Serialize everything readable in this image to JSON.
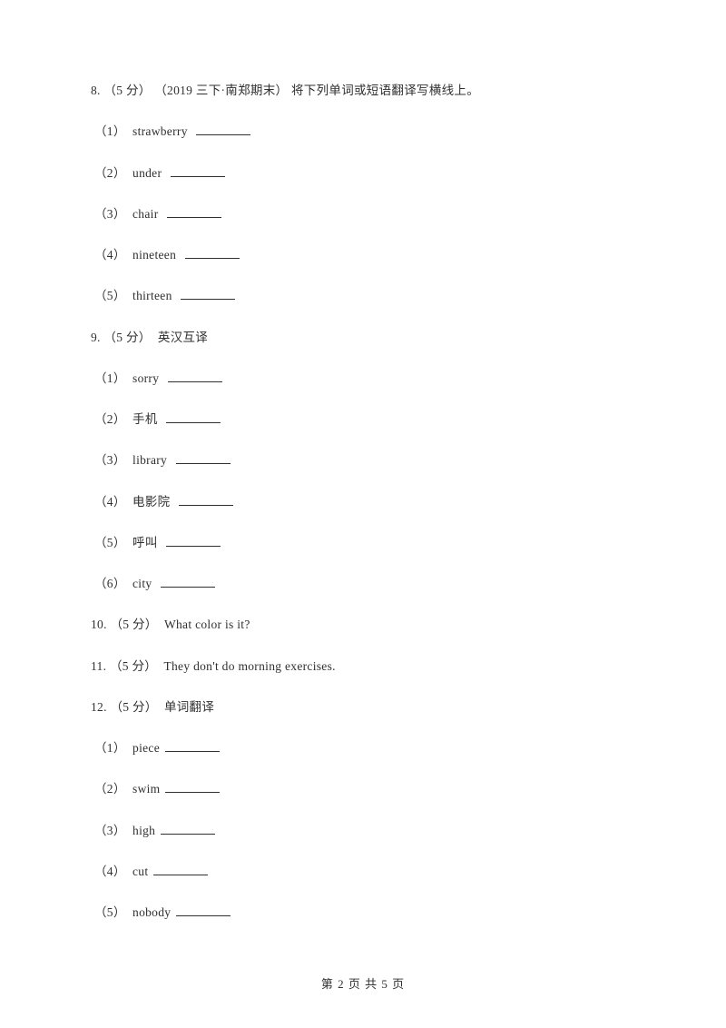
{
  "questions": [
    {
      "number": "8.",
      "points": "（5 分）",
      "meta": "（2019 三下·南郑期末）",
      "prompt": "将下列单词或短语翻译写横线上。",
      "items": [
        {
          "num": "（1）",
          "text": "strawberry"
        },
        {
          "num": "（2）",
          "text": "under"
        },
        {
          "num": "（3）",
          "text": "chair"
        },
        {
          "num": "（4）",
          "text": "nineteen"
        },
        {
          "num": "（5）",
          "text": "thirteen"
        }
      ]
    },
    {
      "number": "9.",
      "points": "（5 分）",
      "meta": "",
      "prompt": "英汉互译",
      "items": [
        {
          "num": "（1）",
          "text": "sorry"
        },
        {
          "num": "（2）",
          "text": "手机"
        },
        {
          "num": "（3）",
          "text": "library"
        },
        {
          "num": "（4）",
          "text": "电影院"
        },
        {
          "num": "（5）",
          "text": "呼叫"
        },
        {
          "num": "（6）",
          "text": "city"
        }
      ]
    },
    {
      "number": "10.",
      "points": "（5 分）",
      "meta": "",
      "prompt": "What color is it?",
      "items": []
    },
    {
      "number": "11.",
      "points": "（5 分）",
      "meta": "",
      "prompt": "They don't do morning exercises.",
      "items": []
    },
    {
      "number": "12.",
      "points": "（5 分）",
      "meta": "",
      "prompt": "单词翻译",
      "items": [
        {
          "num": "（1）",
          "text": "piece"
        },
        {
          "num": "（2）",
          "text": "swim"
        },
        {
          "num": "（3）",
          "text": "high"
        },
        {
          "num": "（4）",
          "text": "cut"
        },
        {
          "num": "（5）",
          "text": "nobody"
        }
      ]
    }
  ],
  "footer": {
    "prefix": "第 ",
    "current": "2",
    "middle": " 页 共 ",
    "total": "5",
    "suffix": " 页"
  }
}
